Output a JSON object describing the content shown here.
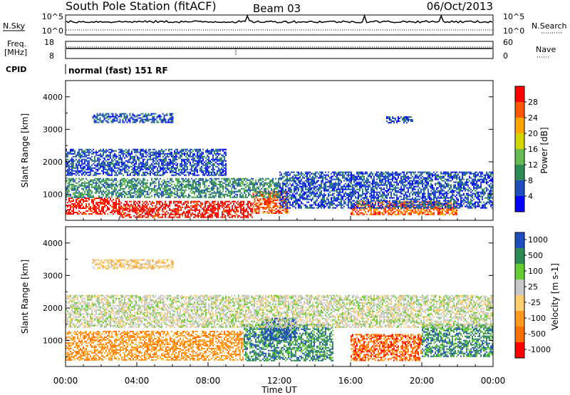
{
  "header": {
    "station": "South Pole Station (fitACF)",
    "beam": "Beam 03",
    "date": "06/Oct/2013"
  },
  "top_panels": {
    "nsky_label": "N.Sky",
    "nsearch_label": "N.Search",
    "nsky_left_ticks": [
      "10^5",
      "10^0"
    ],
    "nsky_right_ticks": [
      "10^5",
      "10^0"
    ],
    "freq_label_1": "Freq.",
    "freq_label_2": "[MHz]",
    "freq_ticks": [
      "18",
      "8"
    ],
    "nave_label": "Nave",
    "nave_ticks": [
      "60",
      "0"
    ],
    "cpid_label": "CPID",
    "cpid_value": "normal (fast) 151 RF"
  },
  "colors": {
    "power": [
      "#0000ff",
      "#1f4fbf",
      "#2e8b57",
      "#66bb55",
      "#d4d400",
      "#ffa500",
      "#ff5a00",
      "#ff0000"
    ],
    "velocity": [
      "#ff0000",
      "#ff6f00",
      "#ff9a20",
      "#ffd070",
      "#c8c8c8",
      "#66cc33",
      "#2e8b57",
      "#1f4fbf"
    ]
  },
  "chart_data": [
    {
      "type": "heatmap",
      "title": "Power",
      "xlabel": "",
      "ylabel": "Slant Range [km]",
      "xlim": [
        0,
        24
      ],
      "ylim": [
        200,
        4500
      ],
      "yticks": [
        "1000",
        "2000",
        "3000",
        "4000"
      ],
      "colorbar_label": "Power [dB]",
      "colorbar_ticks": [
        "4",
        "8",
        "12",
        "16",
        "20",
        "24",
        "28"
      ],
      "regions": [
        {
          "x0": 0,
          "x1": 3,
          "y0": 400,
          "y1": 900,
          "bin": 7
        },
        {
          "x0": 3,
          "x1": 10.5,
          "y0": 300,
          "y1": 800,
          "bin": 7
        },
        {
          "x0": 10.5,
          "x1": 12.5,
          "y0": 400,
          "y1": 1100,
          "bin": 6
        },
        {
          "x0": 16,
          "x1": 22,
          "y0": 400,
          "y1": 800,
          "bin": 6
        },
        {
          "x0": 0,
          "x1": 12,
          "y0": 900,
          "y1": 1500,
          "bin": 2
        },
        {
          "x0": 12,
          "x1": 24,
          "y0": 600,
          "y1": 1700,
          "bin": 1
        },
        {
          "x0": 0,
          "x1": 9,
          "y0": 1600,
          "y1": 2400,
          "bin": 1
        },
        {
          "x0": 1.5,
          "x1": 6,
          "y0": 3200,
          "y1": 3500,
          "bin": 1
        },
        {
          "x0": 18,
          "x1": 19.5,
          "y0": 3200,
          "y1": 3400,
          "bin": 1
        }
      ]
    },
    {
      "type": "heatmap",
      "title": "Velocity",
      "xlabel": "Time UT",
      "ylabel": "Slant Range [km]",
      "xlim": [
        0,
        24
      ],
      "ylim": [
        200,
        4500
      ],
      "xticks": [
        "00:00",
        "04:00",
        "08:00",
        "12:00",
        "16:00",
        "20:00",
        "00:00"
      ],
      "yticks": [
        "1000",
        "2000",
        "3000",
        "4000"
      ],
      "colorbar_label": "Velocity [m s-1]",
      "colorbar_ticks": [
        "1000",
        "500",
        "100",
        "25",
        "-25",
        "-100",
        "-500",
        "-1000"
      ],
      "regions": [
        {
          "x0": 0,
          "x1": 10,
          "y0": 400,
          "y1": 1300,
          "bin": 2
        },
        {
          "x0": 10,
          "x1": 15,
          "y0": 400,
          "y1": 1500,
          "bin": 6
        },
        {
          "x0": 11,
          "x1": 13,
          "y0": 1000,
          "y1": 1700,
          "bin": 7
        },
        {
          "x0": 16,
          "x1": 20,
          "y0": 400,
          "y1": 1200,
          "bin": 1
        },
        {
          "x0": 20,
          "x1": 24,
          "y0": 500,
          "y1": 1500,
          "bin": 6
        },
        {
          "x0": 0,
          "x1": 24,
          "y0": 1400,
          "y1": 2400,
          "bin": 4
        },
        {
          "x0": 1.5,
          "x1": 6,
          "y0": 3200,
          "y1": 3500,
          "bin": 3
        }
      ]
    }
  ]
}
